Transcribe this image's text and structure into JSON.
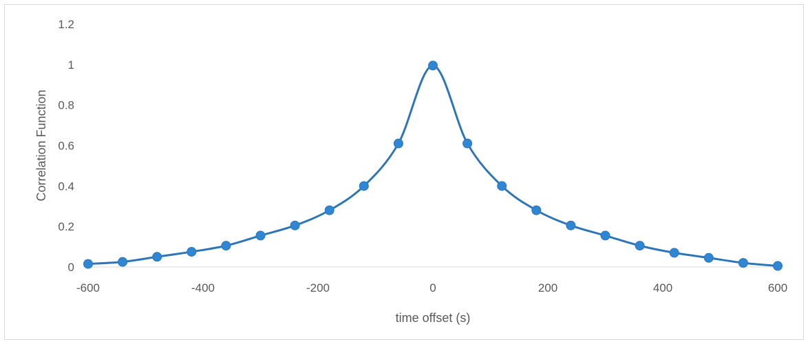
{
  "chart_data": {
    "type": "line",
    "xlabel": "time offset (s)",
    "ylabel": "Correlation Function",
    "xlim": [
      -600,
      600
    ],
    "ylim": [
      0,
      1.2
    ],
    "x_ticks": [
      -600,
      -400,
      -200,
      0,
      200,
      400,
      600
    ],
    "y_ticks": [
      0,
      0.2,
      0.4,
      0.6,
      0.8,
      1,
      1.2
    ],
    "y_tick_labels": [
      "0",
      "0.2",
      "0.4",
      "0.6",
      "0.8",
      "1",
      "1.2"
    ],
    "grid": false,
    "line_color": "#2e75b6",
    "marker_color": "#2e86d4",
    "smooth": true,
    "series": [
      {
        "x": [
          -600,
          -540,
          -480,
          -420,
          -360,
          -300,
          -240,
          -180,
          -120,
          -60,
          0,
          60,
          120,
          180,
          240,
          300,
          360,
          420,
          480,
          540,
          600
        ],
        "values": [
          0.015,
          0.025,
          0.05,
          0.075,
          0.105,
          0.155,
          0.205,
          0.28,
          0.4,
          0.61,
          0.995,
          0.61,
          0.4,
          0.28,
          0.205,
          0.155,
          0.105,
          0.07,
          0.045,
          0.02,
          0.005
        ]
      }
    ]
  }
}
